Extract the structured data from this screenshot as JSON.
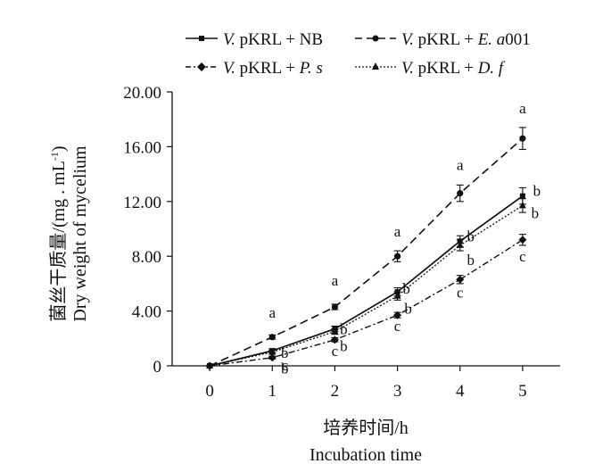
{
  "chart_data": {
    "type": "line",
    "title": "",
    "xlabel_cn": "培养时间/h",
    "xlabel_en": "Incubation time",
    "ylabel_cn": "菌丝干质量/(mg . mL",
    "ylabel_sup": "-1",
    "ylabel_close": ")",
    "ylabel_en": "Dry weight of mycelium",
    "x": [
      0,
      1,
      2,
      3,
      4,
      5
    ],
    "x_tick_labels": [
      "0",
      "1",
      "2",
      "3",
      "4",
      "5"
    ],
    "y_tick_values": [
      0,
      4,
      8,
      12,
      16,
      20
    ],
    "y_tick_labels": [
      "0",
      "4.00",
      "8.00",
      "12.00",
      "16.00",
      "20.00"
    ],
    "xlim": [
      -0.6,
      5.6
    ],
    "ylim": [
      0,
      20
    ],
    "series": [
      {
        "name": "V. pKRL + NB",
        "legend_italic": "V.",
        "legend_rest": " pKRL + NB",
        "legend_rest_italic": "",
        "line_style": "solid",
        "marker": "square",
        "values": [
          0,
          1.1,
          2.7,
          5.4,
          9.1,
          12.4
        ],
        "errors": [
          0,
          0.15,
          0.2,
          0.3,
          0.4,
          0.6
        ],
        "sig_letters": [
          "",
          "b",
          "b",
          "b",
          "b",
          "b"
        ]
      },
      {
        "name": "V. pKRL + E. a001",
        "legend_italic": "V.",
        "legend_rest": " pKRL + ",
        "legend_rest_italic": "E. a",
        "legend_tail": "001",
        "line_style": "dashed",
        "marker": "circle",
        "values": [
          0,
          2.1,
          4.3,
          8.0,
          12.6,
          16.6
        ],
        "errors": [
          0,
          0.15,
          0.2,
          0.4,
          0.6,
          0.8
        ],
        "sig_letters": [
          "",
          "a",
          "a",
          "a",
          "a",
          "a"
        ]
      },
      {
        "name": "V. pKRL + P. s",
        "legend_italic": "V.",
        "legend_rest": " pKRL +  ",
        "legend_rest_italic": "P. s",
        "line_style": "dash-dot",
        "marker": "diamond",
        "values": [
          0,
          0.6,
          1.9,
          3.7,
          6.3,
          9.2
        ],
        "errors": [
          0,
          0.1,
          0.15,
          0.2,
          0.3,
          0.4
        ],
        "sig_letters": [
          "",
          "c",
          "c",
          "c",
          "c",
          "c"
        ]
      },
      {
        "name": "V. pKRL + D. f",
        "legend_italic": "V.",
        "legend_rest": " pKRL +  ",
        "legend_rest_italic": "D. f",
        "line_style": "dotted",
        "marker": "triangle",
        "values": [
          0,
          1.0,
          2.5,
          5.1,
          8.8,
          11.7
        ],
        "errors": [
          0,
          0.15,
          0.2,
          0.3,
          0.4,
          0.5
        ],
        "sig_letters": [
          "",
          "b",
          "b",
          "b",
          "b",
          "b"
        ]
      }
    ],
    "legend": "top"
  }
}
